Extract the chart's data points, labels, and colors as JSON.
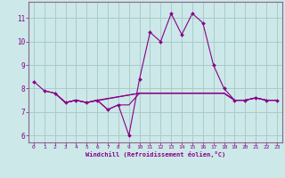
{
  "xlabel": "Windchill (Refroidissement éolien,°C)",
  "bg_color": "#cce8e8",
  "grid_color": "#aacccc",
  "line_color": "#880088",
  "spine_color": "#886688",
  "xlim": [
    -0.5,
    23.5
  ],
  "ylim": [
    5.7,
    11.7
  ],
  "yticks": [
    6,
    7,
    8,
    9,
    10,
    11
  ],
  "xticks": [
    0,
    1,
    2,
    3,
    4,
    5,
    6,
    7,
    8,
    9,
    10,
    11,
    12,
    13,
    14,
    15,
    16,
    17,
    18,
    19,
    20,
    21,
    22,
    23
  ],
  "series0": [
    8.3,
    7.9,
    7.8,
    7.4,
    7.5,
    7.4,
    7.5,
    7.1,
    7.3,
    6.0,
    8.4,
    10.4,
    10.0,
    11.2,
    10.3,
    11.2,
    10.8,
    9.0,
    8.0,
    7.5,
    7.5,
    7.6,
    7.5,
    7.5
  ],
  "series1_x": [
    1,
    2,
    3,
    4,
    5,
    6,
    7,
    8,
    9,
    10,
    11,
    12,
    13,
    14,
    15,
    16,
    17,
    18,
    19,
    20,
    21,
    22,
    23
  ],
  "series1_y": [
    7.9,
    7.8,
    7.4,
    7.5,
    7.4,
    7.5,
    7.1,
    7.3,
    7.3,
    7.8,
    7.8,
    7.8,
    7.8,
    7.8,
    7.8,
    7.8,
    7.8,
    7.8,
    7.5,
    7.5,
    7.6,
    7.5,
    7.5
  ],
  "series2_x": [
    2,
    3,
    4,
    5,
    6,
    10,
    11,
    12,
    13,
    14,
    15,
    16,
    17,
    18,
    19,
    20,
    21,
    22,
    23
  ],
  "series2_y": [
    7.8,
    7.4,
    7.5,
    7.4,
    7.5,
    7.8,
    7.8,
    7.8,
    7.8,
    7.8,
    7.8,
    7.8,
    7.8,
    7.8,
    7.5,
    7.5,
    7.6,
    7.5,
    7.5
  ],
  "series3_x": [
    2,
    3,
    4,
    5,
    10,
    11,
    12,
    13,
    14,
    15,
    16,
    17,
    18,
    19,
    20,
    21,
    22,
    23
  ],
  "series3_y": [
    7.8,
    7.4,
    7.5,
    7.4,
    7.8,
    7.8,
    7.8,
    7.8,
    7.8,
    7.8,
    7.8,
    7.8,
    7.8,
    7.5,
    7.5,
    7.6,
    7.5,
    7.5
  ]
}
